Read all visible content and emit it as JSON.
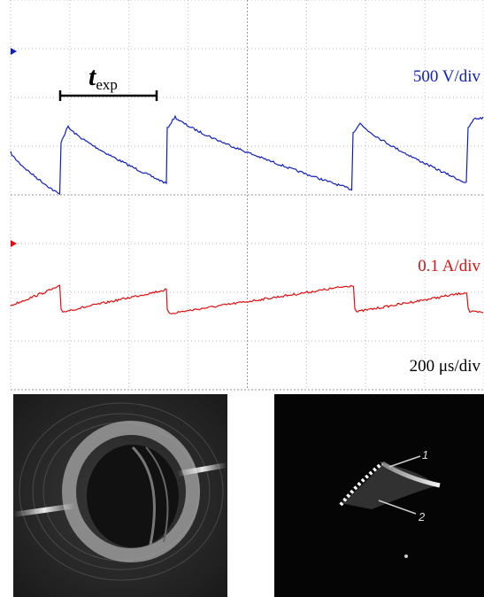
{
  "oscilloscope": {
    "exposure_label": {
      "base": "t",
      "sub": "exp"
    },
    "voltage_scale": "500 V/div",
    "current_scale": "0.1 A/div",
    "time_scale": "200 μs/div"
  },
  "photo_labels": [
    "1",
    "2"
  ]
}
